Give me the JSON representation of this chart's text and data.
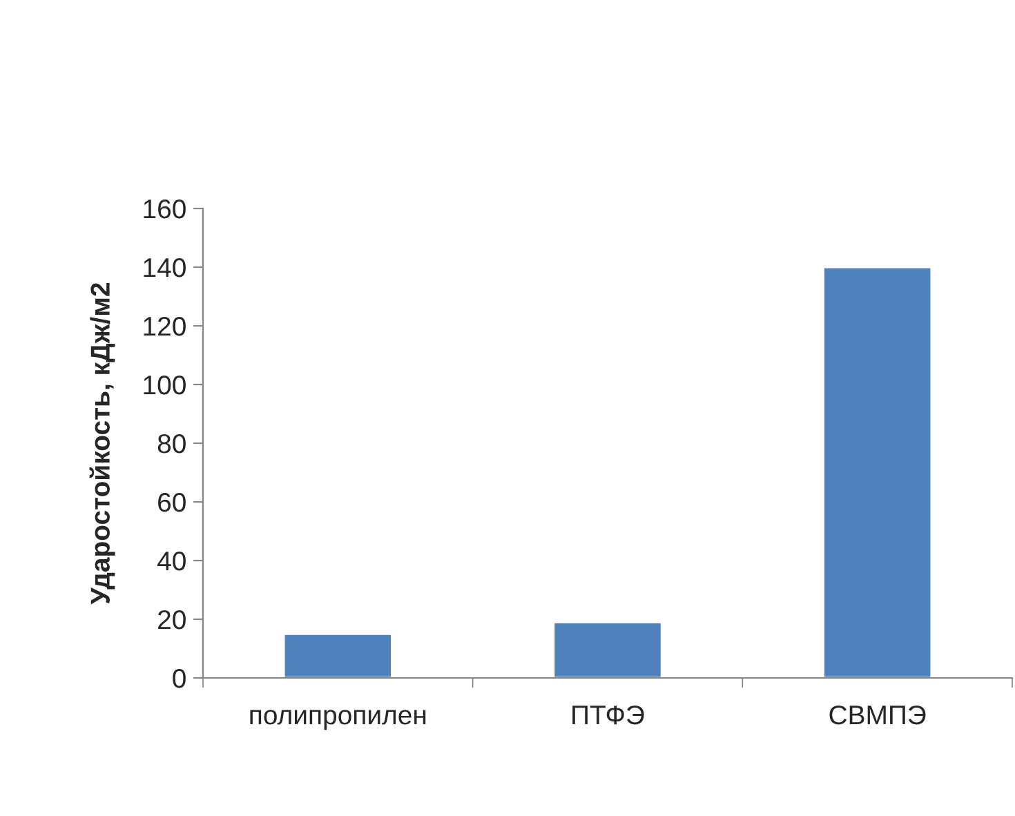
{
  "chart_data": {
    "type": "bar",
    "ylabel": "Ударостойкость, кДж/м2",
    "categories": [
      "полипропилен",
      "ПТФЭ",
      "СВМПЭ"
    ],
    "values": [
      15,
      19,
      140
    ],
    "color": "#4f81bd",
    "ylim": [
      0,
      160
    ],
    "yticks": [
      0,
      20,
      40,
      60,
      80,
      100,
      120,
      140,
      160
    ],
    "grid": false,
    "legend": false
  }
}
